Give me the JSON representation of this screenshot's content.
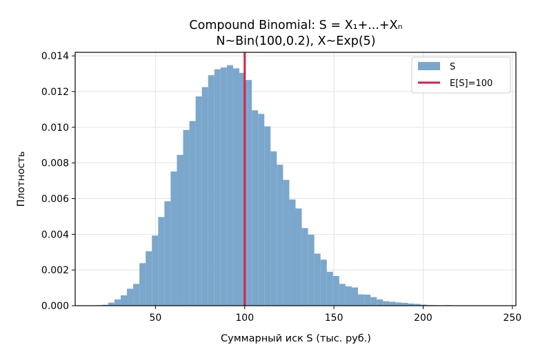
{
  "chart_data": {
    "type": "bar",
    "title": "Compound Binomial: S = X₁+...+Xₙ",
    "subtitle": "N~Bin(100,0.2), X~Exp(5)",
    "xlabel": "Суммарный иск S (тыс. руб.)",
    "ylabel": "Плотность",
    "xlim": [
      5,
      252
    ],
    "ylim": [
      0,
      0.0142
    ],
    "xticks": [
      50,
      100,
      150,
      200,
      250
    ],
    "yticks": [
      "0.000",
      "0.002",
      "0.004",
      "0.006",
      "0.008",
      "0.010",
      "0.012",
      "0.014"
    ],
    "grid": true,
    "legend_position": "top-right",
    "bar_color": "#7ba7cc",
    "mean_color": "#d62040",
    "histogram": {
      "name": "S",
      "bin_width": 3.5,
      "start": 16.5,
      "densities": [
        3e-05,
        5e-05,
        0.00017,
        0.00035,
        0.00058,
        0.00095,
        0.00122,
        0.00238,
        0.00305,
        0.00393,
        0.00497,
        0.00585,
        0.00752,
        0.00845,
        0.00985,
        0.01035,
        0.01173,
        0.01225,
        0.01292,
        0.01325,
        0.01335,
        0.01348,
        0.0133,
        0.01305,
        0.01265,
        0.01095,
        0.01075,
        0.01005,
        0.00865,
        0.0079,
        0.00705,
        0.00595,
        0.00545,
        0.00435,
        0.00398,
        0.00292,
        0.00258,
        0.0019,
        0.00166,
        0.00122,
        0.00108,
        0.00102,
        0.00063,
        0.00062,
        0.00048,
        0.00035,
        0.00025,
        0.00022,
        0.00018,
        0.00016,
        0.00012,
        0.0001,
        6e-05,
        4e-05,
        3e-05,
        2e-05,
        3e-05,
        1e-05,
        1e-05,
        1e-05,
        1e-05
      ]
    },
    "mean_line": {
      "name": "E[S]=100",
      "x": 100
    }
  }
}
